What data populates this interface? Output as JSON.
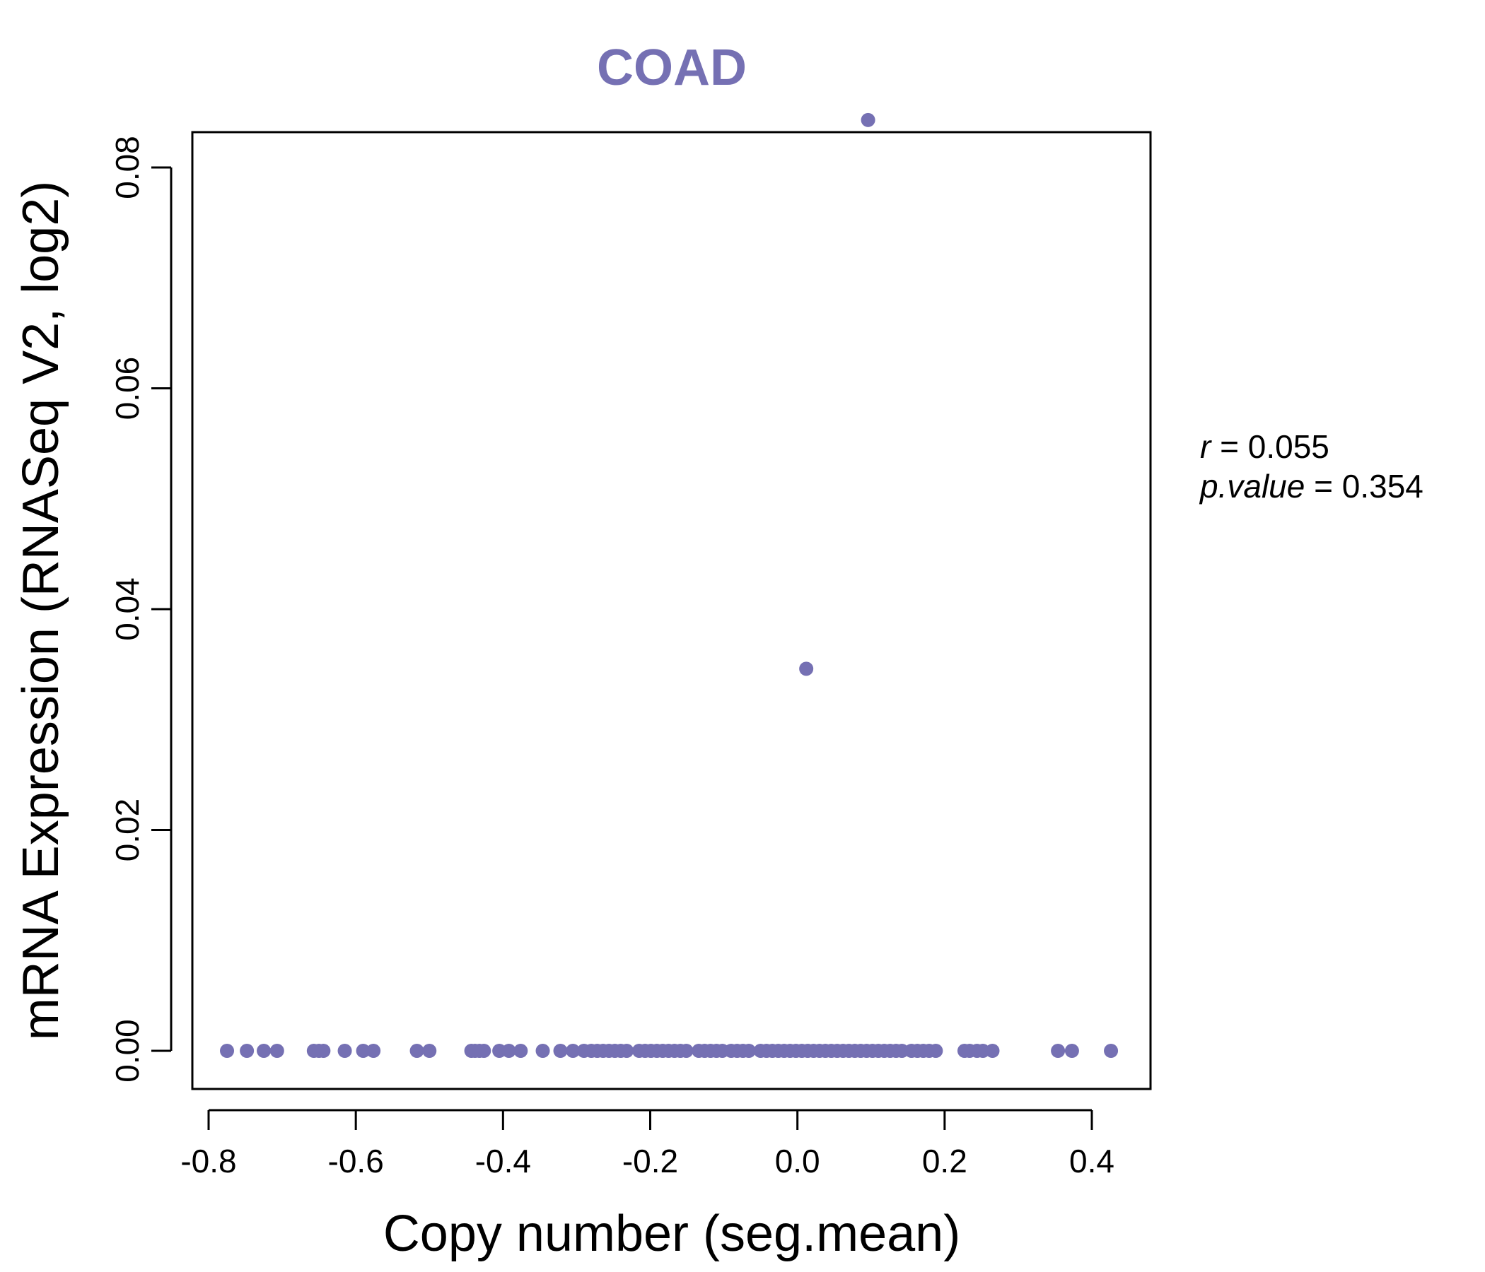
{
  "chart_data": {
    "type": "scatter",
    "title": "COAD",
    "xlabel": "Copy number (seg.mean)",
    "ylabel": "mRNA Expression (RNASeq V2, log2)",
    "xlim": [
      -0.8,
      0.4
    ],
    "ylim": [
      0.0,
      0.08
    ],
    "xticks": [
      "-0.8",
      "-0.6",
      "-0.4",
      "-0.2",
      "0.0",
      "0.2",
      "0.4"
    ],
    "yticks": [
      "0.00",
      "0.02",
      "0.04",
      "0.06",
      "0.08"
    ],
    "color": "#7570b3",
    "stats": {
      "r_label": "r",
      "r_value": "0.055",
      "p_label": "p.value",
      "p_value": "0.354"
    },
    "points": [
      {
        "x": 0.096,
        "y": 0.0843
      },
      {
        "x": 0.012,
        "y": 0.0346
      },
      {
        "x": -0.775,
        "y": 0
      },
      {
        "x": -0.748,
        "y": 0
      },
      {
        "x": -0.725,
        "y": 0
      },
      {
        "x": -0.707,
        "y": 0
      },
      {
        "x": -0.657,
        "y": 0
      },
      {
        "x": -0.65,
        "y": 0
      },
      {
        "x": -0.644,
        "y": 0
      },
      {
        "x": -0.615,
        "y": 0
      },
      {
        "x": -0.59,
        "y": 0
      },
      {
        "x": -0.576,
        "y": 0
      },
      {
        "x": -0.517,
        "y": 0
      },
      {
        "x": -0.5,
        "y": 0
      },
      {
        "x": -0.443,
        "y": 0
      },
      {
        "x": -0.438,
        "y": 0
      },
      {
        "x": -0.432,
        "y": 0
      },
      {
        "x": -0.426,
        "y": 0
      },
      {
        "x": -0.405,
        "y": 0
      },
      {
        "x": -0.392,
        "y": 0
      },
      {
        "x": -0.376,
        "y": 0
      },
      {
        "x": -0.346,
        "y": 0
      },
      {
        "x": -0.322,
        "y": 0
      },
      {
        "x": -0.305,
        "y": 0
      },
      {
        "x": -0.29,
        "y": 0
      },
      {
        "x": -0.28,
        "y": 0
      },
      {
        "x": -0.272,
        "y": 0
      },
      {
        "x": -0.264,
        "y": 0
      },
      {
        "x": -0.256,
        "y": 0
      },
      {
        "x": -0.248,
        "y": 0
      },
      {
        "x": -0.24,
        "y": 0
      },
      {
        "x": -0.232,
        "y": 0
      },
      {
        "x": -0.215,
        "y": 0
      },
      {
        "x": -0.207,
        "y": 0
      },
      {
        "x": -0.199,
        "y": 0
      },
      {
        "x": -0.191,
        "y": 0
      },
      {
        "x": -0.183,
        "y": 0
      },
      {
        "x": -0.175,
        "y": 0
      },
      {
        "x": -0.167,
        "y": 0
      },
      {
        "x": -0.159,
        "y": 0
      },
      {
        "x": -0.151,
        "y": 0
      },
      {
        "x": -0.134,
        "y": 0
      },
      {
        "x": -0.126,
        "y": 0
      },
      {
        "x": -0.118,
        "y": 0
      },
      {
        "x": -0.11,
        "y": 0
      },
      {
        "x": -0.102,
        "y": 0
      },
      {
        "x": -0.09,
        "y": 0
      },
      {
        "x": -0.082,
        "y": 0
      },
      {
        "x": -0.074,
        "y": 0
      },
      {
        "x": -0.066,
        "y": 0
      },
      {
        "x": -0.05,
        "y": 0
      },
      {
        "x": -0.042,
        "y": 0
      },
      {
        "x": -0.034,
        "y": 0
      },
      {
        "x": -0.026,
        "y": 0
      },
      {
        "x": -0.018,
        "y": 0
      },
      {
        "x": -0.01,
        "y": 0
      },
      {
        "x": -0.002,
        "y": 0
      },
      {
        "x": 0.006,
        "y": 0
      },
      {
        "x": 0.014,
        "y": 0
      },
      {
        "x": 0.022,
        "y": 0
      },
      {
        "x": 0.03,
        "y": 0
      },
      {
        "x": 0.038,
        "y": 0
      },
      {
        "x": 0.046,
        "y": 0
      },
      {
        "x": 0.054,
        "y": 0
      },
      {
        "x": 0.062,
        "y": 0
      },
      {
        "x": 0.07,
        "y": 0
      },
      {
        "x": 0.078,
        "y": 0
      },
      {
        "x": 0.086,
        "y": 0
      },
      {
        "x": 0.094,
        "y": 0
      },
      {
        "x": 0.102,
        "y": 0
      },
      {
        "x": 0.11,
        "y": 0
      },
      {
        "x": 0.118,
        "y": 0
      },
      {
        "x": 0.126,
        "y": 0
      },
      {
        "x": 0.134,
        "y": 0
      },
      {
        "x": 0.142,
        "y": 0
      },
      {
        "x": 0.155,
        "y": 0
      },
      {
        "x": 0.163,
        "y": 0
      },
      {
        "x": 0.171,
        "y": 0
      },
      {
        "x": 0.179,
        "y": 0
      },
      {
        "x": 0.188,
        "y": 0
      },
      {
        "x": 0.227,
        "y": 0
      },
      {
        "x": 0.234,
        "y": 0
      },
      {
        "x": 0.244,
        "y": 0
      },
      {
        "x": 0.252,
        "y": 0
      },
      {
        "x": 0.265,
        "y": 0
      },
      {
        "x": 0.354,
        "y": 0
      },
      {
        "x": 0.373,
        "y": 0
      },
      {
        "x": 0.426,
        "y": 0
      }
    ]
  }
}
